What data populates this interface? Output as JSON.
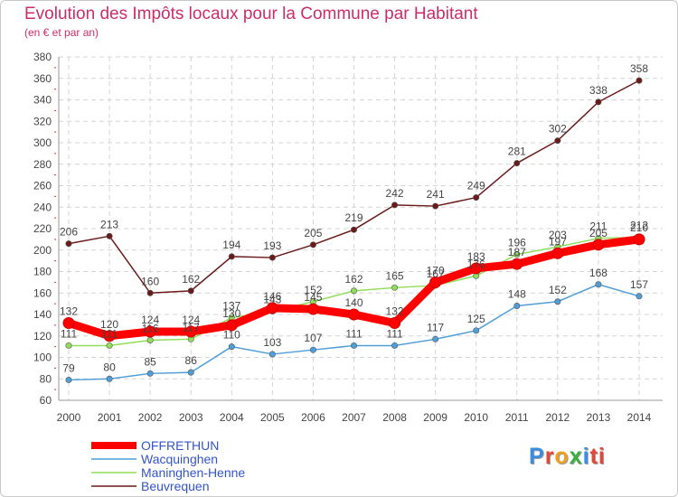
{
  "chart_data": {
    "type": "line",
    "title": "Evolution des Impôts locaux pour la Commune par Habitant",
    "subtitle": "(en € et par an)",
    "xlabel": "",
    "ylabel": "",
    "ylim": [
      60,
      380
    ],
    "ytick_step": 20,
    "grid": true,
    "legend_position": "bottom-left",
    "categories": [
      "2000",
      "2001",
      "2002",
      "2003",
      "2004",
      "2005",
      "2006",
      "2007",
      "2008",
      "2009",
      "2010",
      "2011",
      "2012",
      "2013",
      "2014"
    ],
    "series": [
      {
        "name": "OFFRETHUN",
        "color": "#ff0000",
        "emphasis": true,
        "values": [
          132,
          120,
          124,
          124,
          130,
          146,
          145,
          140,
          132,
          170,
          183,
          187,
          197,
          205,
          210
        ]
      },
      {
        "name": "Wacquinghen",
        "color": "#4f9ed8",
        "emphasis": false,
        "values": [
          79,
          80,
          85,
          86,
          110,
          103,
          107,
          111,
          111,
          117,
          125,
          148,
          152,
          168,
          157
        ]
      },
      {
        "name": "Maninghen-Henne",
        "color": "#8fdd5a",
        "emphasis": false,
        "values": [
          111,
          111,
          116,
          117,
          137,
          143,
          152,
          162,
          165,
          167,
          176,
          196,
          203,
          211,
          212
        ]
      },
      {
        "name": "Beuvrequen",
        "color": "#6b1a1a",
        "emphasis": false,
        "values": [
          206,
          213,
          160,
          162,
          194,
          193,
          205,
          219,
          242,
          241,
          249,
          281,
          302,
          338,
          358
        ]
      }
    ],
    "data_labels": {
      "OFFRETHUN": [
        "132",
        "120",
        "124",
        "124",
        "130",
        "146",
        "145",
        "140",
        "132",
        "170",
        "183",
        "187",
        "197",
        "205",
        "210"
      ],
      "Wacquinghen": [
        "79",
        "80",
        "85",
        "86",
        "110",
        "103",
        "107",
        "111",
        "111",
        "117",
        "125",
        "148",
        "152",
        "168",
        "157"
      ],
      "Maninghen-Henne": [
        "111",
        "111",
        "116",
        "117",
        "137",
        "143",
        "152",
        "162",
        "165",
        "167",
        "176",
        "196",
        "203",
        "211",
        "212"
      ],
      "Beuvrequen": [
        "206",
        "213",
        "160",
        "162",
        "194",
        "193",
        "205",
        "219",
        "242",
        "241",
        "249",
        "281",
        "302",
        "338",
        "358"
      ]
    }
  },
  "logo": {
    "text": "Proxiti"
  }
}
